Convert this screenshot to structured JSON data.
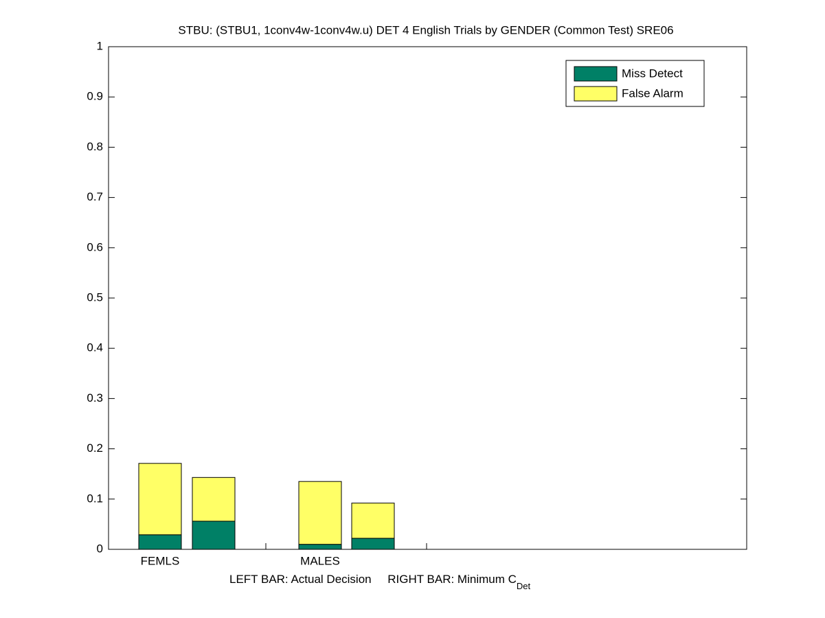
{
  "chart_data": {
    "type": "stacked_bar",
    "title": "STBU: (STBU1, 1conv4w-1conv4w.u) DET 4 English Trials by GENDER (Common Test) SRE06",
    "xlabel": "LEFT BAR: Actual Decision     RIGHT BAR: Minimum C",
    "xlabel_subscript": "Det",
    "categories": [
      "FEMLS",
      null,
      "MALES",
      null
    ],
    "series": [
      {
        "name": "Miss Detect",
        "color": "#008066",
        "values": [
          0.029,
          0.056,
          0.01,
          0.022
        ]
      },
      {
        "name": "False Alarm",
        "color": "#ffff66",
        "values": [
          0.142,
          0.087,
          0.125,
          0.07
        ]
      }
    ],
    "ylim": [
      0,
      1
    ],
    "yticks": [
      0,
      0.1,
      0.2,
      0.3,
      0.4,
      0.5,
      0.6,
      0.7,
      0.8,
      0.9,
      1
    ],
    "legend": "top-right"
  }
}
